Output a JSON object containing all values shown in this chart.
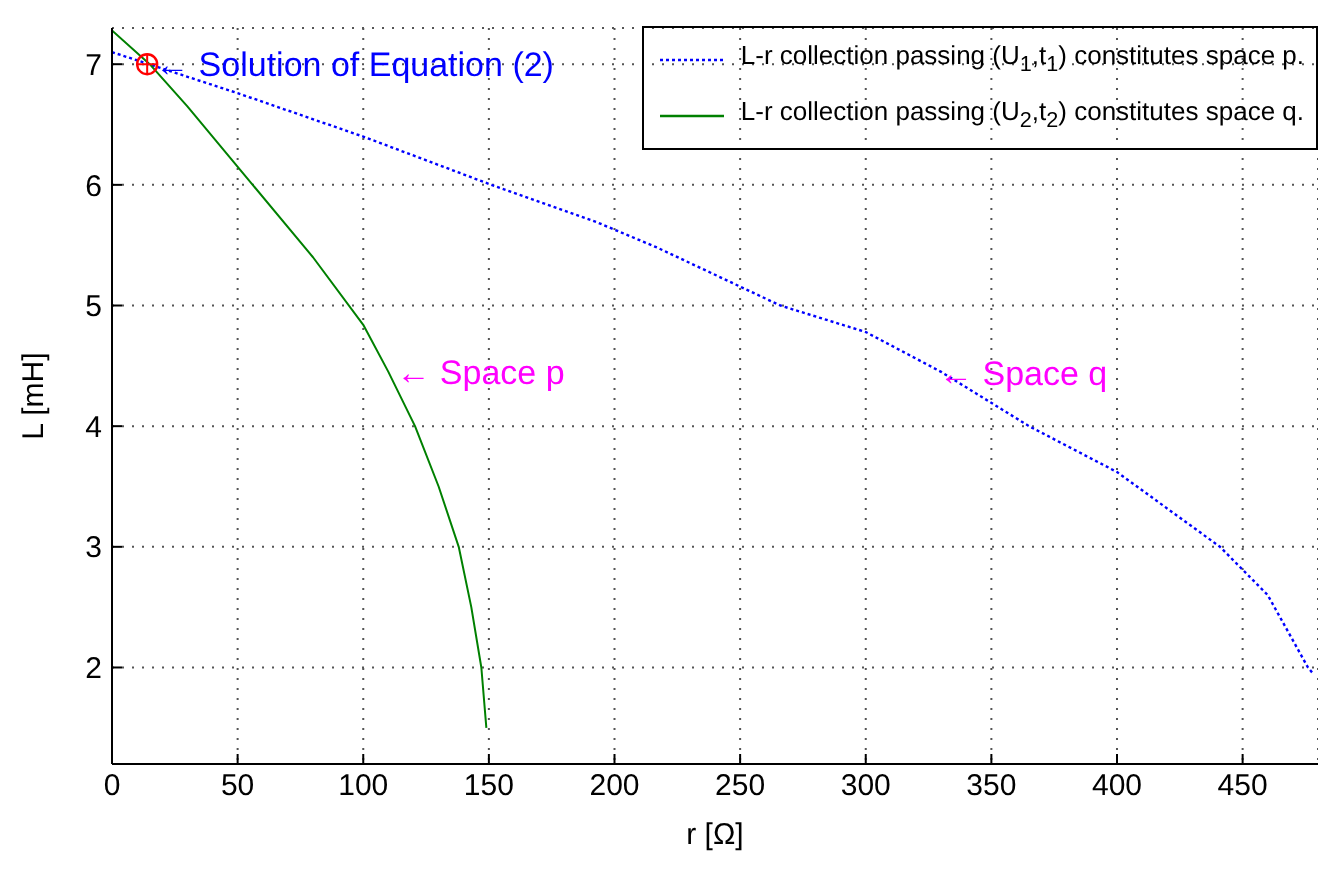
{
  "chart_data": {
    "type": "line",
    "xlabel": "r [Ω]",
    "ylabel": "L [mH]",
    "xlim": [
      0,
      480
    ],
    "ylim": [
      1.2,
      7.3
    ],
    "xticks": [
      0,
      50,
      100,
      150,
      200,
      250,
      300,
      350,
      400,
      450
    ],
    "yticks": [
      2,
      3,
      4,
      5,
      6,
      7
    ],
    "grid": true,
    "legend": "top right",
    "marker": "none",
    "series": [
      {
        "name": "L-r collection passing (U$_{1}$,t$_{1}$) constitutes space p.",
        "color": "#0000ff",
        "line_style": "dotted",
        "x": [
          0,
          50,
          100,
          151,
          193,
          217,
          266,
          300,
          330,
          365,
          400,
          441,
          460,
          476,
          478
        ],
        "values": [
          7.1,
          6.76,
          6.4,
          6,
          5.69,
          5.48,
          5,
          4.78,
          4.45,
          4,
          3.62,
          3,
          2.6,
          2,
          1.95
        ]
      },
      {
        "name": "L-r collection passing (U$_{2}$,t$_{2}$) constitutes space q.",
        "color": "#008000",
        "line_style": "solid",
        "x": [
          0,
          15,
          30,
          56,
          80,
          100,
          110,
          120.6,
          130,
          138,
          143,
          147,
          149
        ],
        "values": [
          7.28,
          7,
          6.65,
          6,
          5.4,
          4.84,
          4.45,
          4,
          3.5,
          3,
          2.5,
          2,
          1.5
        ]
      },
      {
        "type": "scatter",
        "color": "#ff0000",
        "marker": "circle",
        "x": [
          14
        ],
        "values": [
          7
        ]
      }
    ],
    "annotations": [
      {
        "text": "← Solution of Equation (2)",
        "x": 14,
        "y": 7
      },
      {
        "text": "← Space p",
        "x": 110,
        "y": 4.45
      },
      {
        "text": "← Space q",
        "x": 326,
        "y": 4.44
      }
    ]
  }
}
